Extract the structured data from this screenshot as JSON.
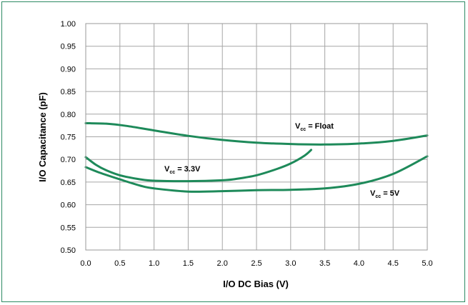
{
  "chart_data": {
    "type": "line",
    "xlabel": "I/O DC Bias (V)",
    "ylabel": "I/O Capacitance (pF)",
    "xlim": [
      0,
      5
    ],
    "ylim": [
      0.5,
      1.0
    ],
    "grid": true,
    "x_ticks": [
      "0.0",
      "0.5",
      "1.0",
      "1.5",
      "2.0",
      "2.5",
      "3.0",
      "3.5",
      "4.0",
      "4.5",
      "5.0"
    ],
    "y_ticks": [
      "1.00",
      "0.95",
      "0.90",
      "0.85",
      "0.80",
      "0.75",
      "0.70",
      "0.65",
      "0.60",
      "0.55",
      "0.50"
    ],
    "line_color": "#1e8a5a",
    "series": [
      {
        "name": "VCC = Float",
        "points": [
          [
            0,
            0.78
          ],
          [
            0.3,
            0.779
          ],
          [
            0.6,
            0.774
          ],
          [
            1.0,
            0.764
          ],
          [
            1.5,
            0.752
          ],
          [
            2.0,
            0.743
          ],
          [
            2.5,
            0.737
          ],
          [
            3.0,
            0.734
          ],
          [
            3.5,
            0.733
          ],
          [
            4.0,
            0.735
          ],
          [
            4.5,
            0.741
          ],
          [
            5.0,
            0.753
          ]
        ]
      },
      {
        "name": "VCC = 3.3V",
        "points": [
          [
            0,
            0.705
          ],
          [
            0.15,
            0.688
          ],
          [
            0.3,
            0.676
          ],
          [
            0.5,
            0.665
          ],
          [
            0.8,
            0.656
          ],
          [
            1.0,
            0.653
          ],
          [
            1.5,
            0.652
          ],
          [
            2.0,
            0.654
          ],
          [
            2.2,
            0.657
          ],
          [
            2.5,
            0.665
          ],
          [
            2.8,
            0.679
          ],
          [
            3.0,
            0.691
          ],
          [
            3.2,
            0.708
          ],
          [
            3.3,
            0.721
          ]
        ]
      },
      {
        "name": "VCC = 5V",
        "points": [
          [
            0,
            0.683
          ],
          [
            0.2,
            0.671
          ],
          [
            0.5,
            0.656
          ],
          [
            0.8,
            0.642
          ],
          [
            1.0,
            0.636
          ],
          [
            1.5,
            0.629
          ],
          [
            2.0,
            0.63
          ],
          [
            2.5,
            0.632
          ],
          [
            3.0,
            0.633
          ],
          [
            3.5,
            0.636
          ],
          [
            4.0,
            0.646
          ],
          [
            4.5,
            0.668
          ],
          [
            5.0,
            0.707
          ]
        ]
      }
    ],
    "annotations": [
      {
        "main": "V",
        "sub": "cc",
        "rest": " = Float"
      },
      {
        "main": "V",
        "sub": "cc",
        "rest": " = 3.3V"
      },
      {
        "main": "V",
        "sub": "cc",
        "rest": " = 5V"
      }
    ]
  }
}
